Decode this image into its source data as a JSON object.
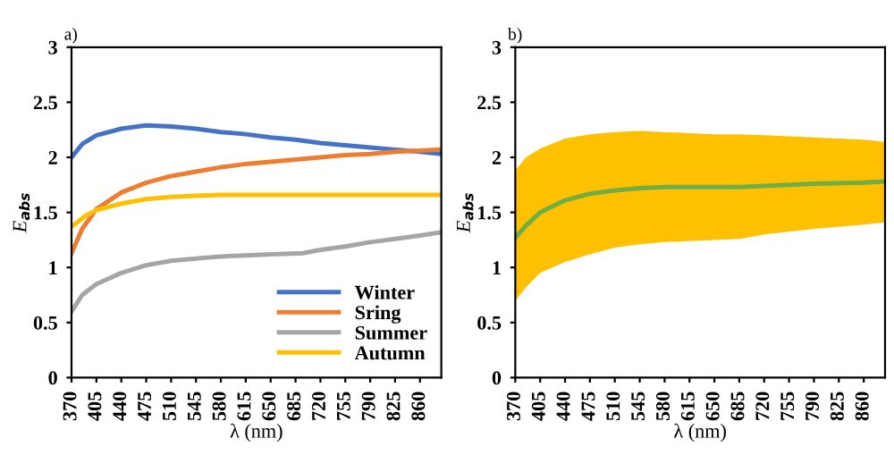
{
  "chart_data": [
    {
      "type": "line",
      "title": "a)",
      "xlabel": "λ (nm)",
      "ylabel": "E$_{abs}$",
      "xlim": [
        370,
        890
      ],
      "xticks": [
        370,
        405,
        440,
        475,
        510,
        545,
        580,
        615,
        650,
        685,
        720,
        755,
        790,
        825,
        860
      ],
      "ylim": [
        0,
        3
      ],
      "yticks": [
        0,
        0.5,
        1,
        1.5,
        2,
        2.5,
        3
      ],
      "grid": false,
      "legend": "bottom right",
      "marker": "none",
      "line_style": "solid",
      "series": [
        {
          "name": "Winter",
          "color": "#4472c4",
          "x": [
            370,
            385,
            405,
            440,
            475,
            510,
            545,
            580,
            615,
            650,
            685,
            720,
            755,
            790,
            825,
            860,
            890
          ],
          "values": [
            2.0,
            2.12,
            2.2,
            2.26,
            2.29,
            2.28,
            2.26,
            2.23,
            2.21,
            2.18,
            2.16,
            2.13,
            2.11,
            2.09,
            2.07,
            2.05,
            2.03
          ]
        },
        {
          "name": "Sring",
          "color": "#ed7d31",
          "x": [
            370,
            385,
            405,
            440,
            475,
            510,
            545,
            580,
            615,
            650,
            685,
            720,
            755,
            790,
            825,
            860,
            890
          ],
          "values": [
            1.13,
            1.35,
            1.53,
            1.68,
            1.77,
            1.83,
            1.87,
            1.91,
            1.94,
            1.96,
            1.98,
            2.0,
            2.02,
            2.03,
            2.05,
            2.06,
            2.07
          ]
        },
        {
          "name": "Summer",
          "color": "#a5a5a5",
          "x": [
            370,
            385,
            405,
            440,
            475,
            510,
            545,
            580,
            615,
            650,
            695,
            720,
            755,
            790,
            825,
            860,
            890
          ],
          "values": [
            0.6,
            0.75,
            0.85,
            0.95,
            1.02,
            1.06,
            1.08,
            1.1,
            1.11,
            1.12,
            1.13,
            1.16,
            1.19,
            1.23,
            1.26,
            1.29,
            1.32
          ]
        },
        {
          "name": "Autumn",
          "color": "#ffc000",
          "x": [
            370,
            390,
            405,
            440,
            475,
            510,
            545,
            580,
            650,
            720,
            790,
            860,
            890
          ],
          "values": [
            1.37,
            1.47,
            1.52,
            1.58,
            1.62,
            1.64,
            1.65,
            1.66,
            1.66,
            1.66,
            1.66,
            1.66,
            1.66
          ]
        }
      ]
    },
    {
      "type": "line",
      "title": "b)",
      "xlabel": "λ (nm)",
      "ylabel": "E$_{abs}$",
      "xlim": [
        370,
        890
      ],
      "xticks": [
        370,
        405,
        440,
        475,
        510,
        545,
        580,
        615,
        650,
        685,
        720,
        755,
        790,
        825,
        860
      ],
      "ylim": [
        0,
        3
      ],
      "yticks": [
        0,
        0.5,
        1,
        1.5,
        2,
        2.5,
        3
      ],
      "grid": false,
      "legend": false,
      "marker": "none",
      "line_style": "solid",
      "series": [
        {
          "color": "#70ad47",
          "x": [
            370,
            385,
            405,
            440,
            475,
            510,
            545,
            580,
            650,
            685,
            720,
            790,
            860,
            890
          ],
          "values": [
            1.27,
            1.38,
            1.5,
            1.61,
            1.67,
            1.7,
            1.72,
            1.73,
            1.73,
            1.73,
            1.74,
            1.76,
            1.77,
            1.78
          ],
          "lower": [
            0.7,
            0.82,
            0.95,
            1.05,
            1.12,
            1.18,
            1.21,
            1.23,
            1.25,
            1.26,
            1.3,
            1.35,
            1.39,
            1.41
          ],
          "upper": [
            1.88,
            2.0,
            2.08,
            2.17,
            2.21,
            2.23,
            2.24,
            2.23,
            2.21,
            2.21,
            2.2,
            2.18,
            2.16,
            2.14
          ]
        }
      ]
    }
  ]
}
